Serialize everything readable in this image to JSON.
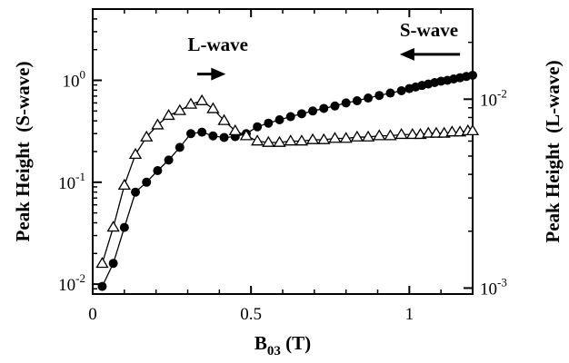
{
  "chart_data": {
    "type": "scatter",
    "x": {
      "label_main": "B",
      "label_sub": "03",
      "label_unit": " (T)",
      "range": [
        0,
        1.2
      ],
      "ticks": [
        {
          "value": 0,
          "label": "0"
        },
        {
          "value": 0.5,
          "label": "0.5"
        },
        {
          "value": 1,
          "label": "1"
        }
      ]
    },
    "y_left": {
      "label": "Peak Height  (S-wave)",
      "scale": "log",
      "range": [
        0.008,
        5
      ],
      "ticks": [
        {
          "value": 0.01,
          "mantissa": "10",
          "exp": "-2"
        },
        {
          "value": 0.1,
          "mantissa": "10",
          "exp": "-1"
        },
        {
          "value": 1,
          "mantissa": "10",
          "exp": "0"
        }
      ]
    },
    "y_right": {
      "label": "Peak Height  (L-wave)",
      "scale": "log",
      "range": [
        0.00093,
        0.03
      ],
      "ticks": [
        {
          "value": 0.001,
          "mantissa": "10",
          "exp": "-3"
        },
        {
          "value": 0.01,
          "mantissa": "10",
          "exp": "-2"
        }
      ]
    },
    "series": [
      {
        "axis": "left",
        "marker": "filled-circle",
        "color": "#000000",
        "points": [
          [
            0.03,
            0.0095
          ],
          [
            0.065,
            0.016
          ],
          [
            0.1,
            0.036
          ],
          [
            0.135,
            0.08
          ],
          [
            0.17,
            0.1
          ],
          [
            0.205,
            0.13
          ],
          [
            0.24,
            0.165
          ],
          [
            0.275,
            0.22
          ],
          [
            0.31,
            0.3
          ],
          [
            0.345,
            0.31
          ],
          [
            0.38,
            0.285
          ],
          [
            0.415,
            0.275
          ],
          [
            0.45,
            0.28
          ],
          [
            0.485,
            0.3
          ],
          [
            0.52,
            0.35
          ],
          [
            0.555,
            0.38
          ],
          [
            0.59,
            0.41
          ],
          [
            0.625,
            0.44
          ],
          [
            0.66,
            0.47
          ],
          [
            0.695,
            0.5
          ],
          [
            0.73,
            0.53
          ],
          [
            0.765,
            0.56
          ],
          [
            0.8,
            0.6
          ],
          [
            0.835,
            0.63
          ],
          [
            0.87,
            0.67
          ],
          [
            0.905,
            0.71
          ],
          [
            0.94,
            0.75
          ],
          [
            0.975,
            0.79
          ],
          [
            1.0,
            0.83
          ],
          [
            1.02,
            0.86
          ],
          [
            1.04,
            0.89
          ],
          [
            1.06,
            0.92
          ],
          [
            1.08,
            0.95
          ],
          [
            1.1,
            0.98
          ],
          [
            1.12,
            1.0
          ],
          [
            1.14,
            1.03
          ],
          [
            1.16,
            1.06
          ],
          [
            1.18,
            1.09
          ],
          [
            1.2,
            1.12
          ]
        ]
      },
      {
        "axis": "right",
        "marker": "open-triangle",
        "color": "#000000",
        "points": [
          [
            0.03,
            0.00135
          ],
          [
            0.065,
            0.0021
          ],
          [
            0.1,
            0.0035
          ],
          [
            0.135,
            0.0051
          ],
          [
            0.17,
            0.0063
          ],
          [
            0.205,
            0.0073
          ],
          [
            0.24,
            0.0082
          ],
          [
            0.275,
            0.0087
          ],
          [
            0.31,
            0.0094
          ],
          [
            0.345,
            0.0098
          ],
          [
            0.38,
            0.0089
          ],
          [
            0.415,
            0.0077
          ],
          [
            0.45,
            0.0068
          ],
          [
            0.485,
            0.0064
          ],
          [
            0.52,
            0.006
          ],
          [
            0.555,
            0.0059
          ],
          [
            0.59,
            0.0059
          ],
          [
            0.625,
            0.006
          ],
          [
            0.66,
            0.006
          ],
          [
            0.695,
            0.0061
          ],
          [
            0.73,
            0.0061
          ],
          [
            0.765,
            0.0062
          ],
          [
            0.8,
            0.0062
          ],
          [
            0.835,
            0.0063
          ],
          [
            0.87,
            0.0063
          ],
          [
            0.905,
            0.0064
          ],
          [
            0.94,
            0.0064
          ],
          [
            0.975,
            0.0065
          ],
          [
            1.01,
            0.0065
          ],
          [
            1.035,
            0.0065
          ],
          [
            1.06,
            0.0066
          ],
          [
            1.085,
            0.0066
          ],
          [
            1.11,
            0.0066
          ],
          [
            1.135,
            0.0067
          ],
          [
            1.16,
            0.0067
          ],
          [
            1.185,
            0.0068
          ],
          [
            1.2,
            0.0068
          ]
        ]
      }
    ],
    "annotations": [
      {
        "text": "L-wave",
        "arrow": "right",
        "arrow_from": [
          0.33,
          1.15
        ],
        "arrow_to": [
          0.42,
          1.15
        ],
        "text_at": [
          0.3,
          1.95
        ]
      },
      {
        "text": "S-wave",
        "arrow": "left",
        "arrow_from": [
          1.16,
          1.8
        ],
        "arrow_to": [
          0.97,
          1.8
        ],
        "text_at": [
          0.97,
          2.7
        ]
      }
    ]
  }
}
